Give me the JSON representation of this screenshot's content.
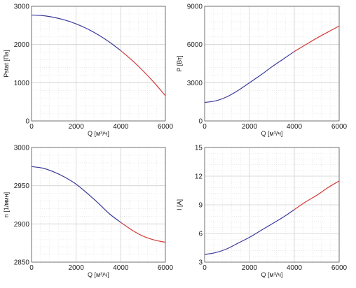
{
  "chart_data": [
    {
      "type": "line",
      "xlabel": "Q [м³/ч]",
      "ylabel": "Pstat [Па]",
      "xlim": [
        0,
        6000
      ],
      "ylim": [
        0,
        3000
      ],
      "xticks": [
        "0",
        "2000",
        "4000",
        "6000"
      ],
      "yticks": [
        "0",
        "1000",
        "2000",
        "3000"
      ],
      "grid": true,
      "split_x": 4000,
      "colors": {
        "primary": "#3a3a9a",
        "extension": "#d43a3a"
      },
      "series": [
        {
          "x": [
            0,
            500,
            1000,
            1500,
            2000,
            2500,
            3000,
            3500,
            4000
          ],
          "values": [
            2770,
            2755,
            2710,
            2640,
            2540,
            2410,
            2250,
            2060,
            1840
          ]
        },
        {
          "x": [
            4000,
            4500,
            5000,
            5500,
            6000
          ],
          "values": [
            1840,
            1590,
            1310,
            1000,
            660
          ]
        }
      ]
    },
    {
      "type": "line",
      "xlabel": "Q [м³/ч]",
      "ylabel": "P [Вт]",
      "xlim": [
        0,
        6000
      ],
      "ylim": [
        0,
        9000
      ],
      "xticks": [
        "0",
        "2000",
        "4000",
        "6000"
      ],
      "yticks": [
        "0",
        "3000",
        "6000",
        "9000"
      ],
      "grid": true,
      "split_x": 4000,
      "colors": {
        "primary": "#3a3a9a",
        "extension": "#d43a3a"
      },
      "series": [
        {
          "x": [
            0,
            500,
            1000,
            1500,
            2000,
            2500,
            3000,
            3500,
            4000
          ],
          "values": [
            1450,
            1580,
            1900,
            2400,
            3000,
            3600,
            4250,
            4850,
            5450
          ]
        },
        {
          "x": [
            4000,
            4500,
            5000,
            5500,
            6000
          ],
          "values": [
            5450,
            5980,
            6500,
            6980,
            7450
          ]
        }
      ]
    },
    {
      "type": "line",
      "xlabel": "Q [м³/ч]",
      "ylabel": "n [1/мин]",
      "xlim": [
        0,
        6000
      ],
      "ylim": [
        2850,
        3000
      ],
      "xticks": [
        "0",
        "2000",
        "4000",
        "6000"
      ],
      "yticks": [
        "2850",
        "2900",
        "2950",
        "3000"
      ],
      "grid": true,
      "split_x": 4000,
      "colors": {
        "primary": "#3a3a9a",
        "extension": "#d43a3a"
      },
      "series": [
        {
          "x": [
            0,
            500,
            1000,
            1500,
            2000,
            2500,
            3000,
            3500,
            4000
          ],
          "values": [
            2975,
            2973,
            2968,
            2961,
            2952,
            2940,
            2927,
            2913,
            2902
          ]
        },
        {
          "x": [
            4000,
            4500,
            5000,
            5500,
            6000
          ],
          "values": [
            2902,
            2892,
            2884,
            2879,
            2876
          ]
        }
      ]
    },
    {
      "type": "line",
      "xlabel": "Q [м³/ч]",
      "ylabel": "I [A]",
      "xlim": [
        0,
        6000
      ],
      "ylim": [
        3,
        15
      ],
      "xticks": [
        "0",
        "2000",
        "4000",
        "6000"
      ],
      "yticks": [
        "3",
        "6",
        "9",
        "12",
        "15"
      ],
      "grid": true,
      "split_x": 4000,
      "colors": {
        "primary": "#3a3a9a",
        "extension": "#d43a3a"
      },
      "series": [
        {
          "x": [
            0,
            500,
            1000,
            1500,
            2000,
            2500,
            3000,
            3500,
            4000
          ],
          "values": [
            3.8,
            4.0,
            4.4,
            5.0,
            5.6,
            6.3,
            7.0,
            7.7,
            8.5
          ]
        },
        {
          "x": [
            4000,
            4500,
            5000,
            5500,
            6000
          ],
          "values": [
            8.5,
            9.3,
            10.0,
            10.8,
            11.5
          ]
        }
      ]
    }
  ]
}
